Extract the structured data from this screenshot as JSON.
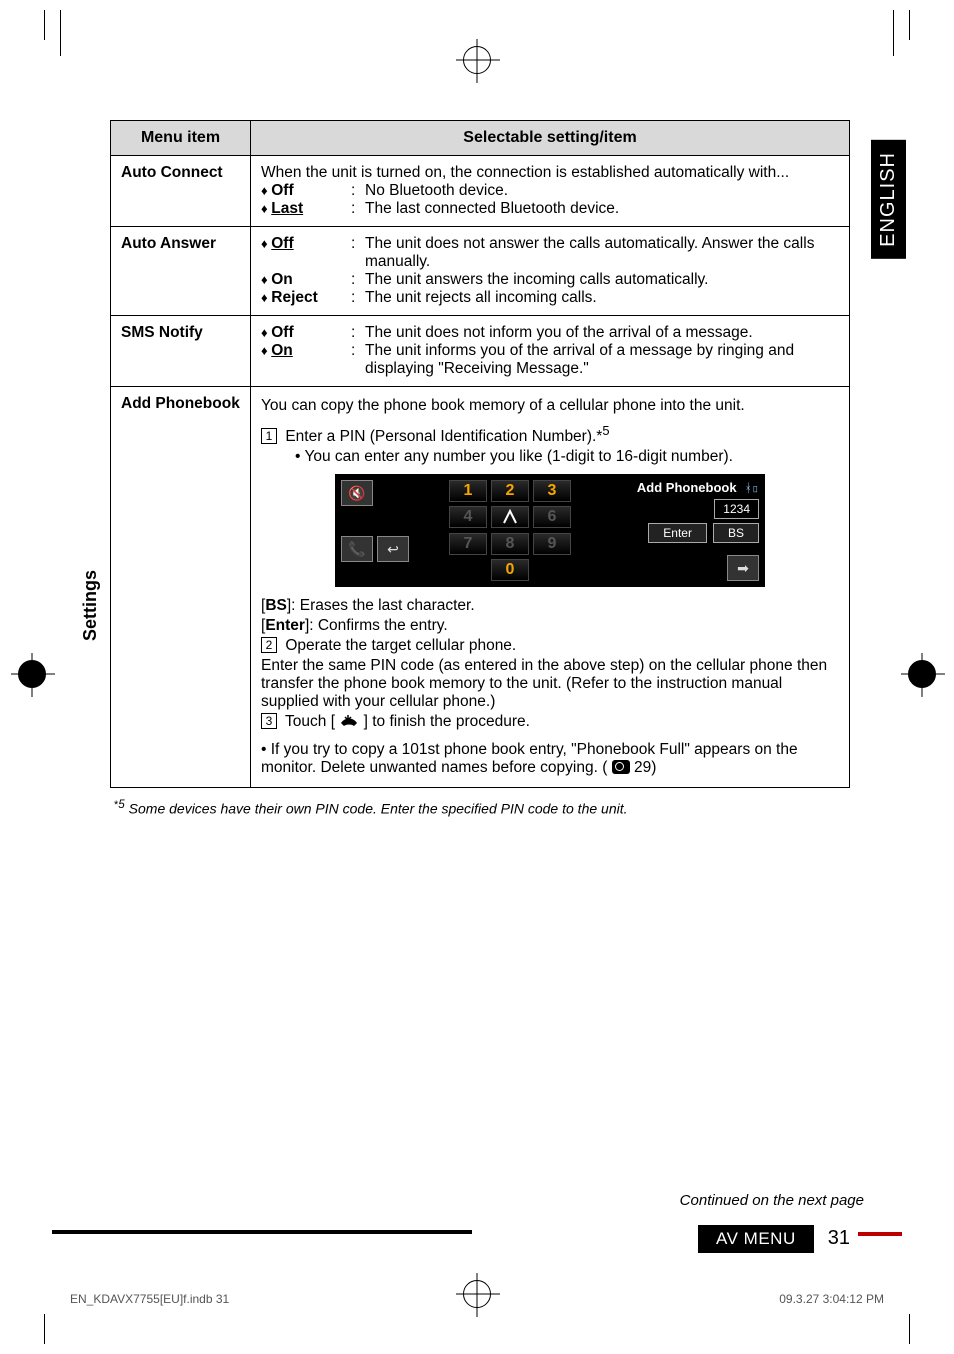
{
  "lang_tab": "ENGLISH",
  "vlabel": "Settings",
  "header": {
    "menu_item": "Menu item",
    "selectable": "Selectable setting/item"
  },
  "rows": {
    "auto_connect": {
      "title": "Auto Connect",
      "intro": "When the unit is turned on, the connection is established automatically with...",
      "off_key": "Off",
      "off_val": "No Bluetooth device.",
      "last_key": "Last",
      "last_val": "The last connected Bluetooth device."
    },
    "auto_answer": {
      "title": "Auto Answer",
      "off_key": "Off",
      "off_val": "The unit does not answer the calls automatically. Answer the calls manually.",
      "on_key": "On",
      "on_val": "The unit answers the incoming calls automatically.",
      "reject_key": "Reject",
      "reject_val": "The unit rejects all incoming calls."
    },
    "sms_notify": {
      "title": "SMS Notify",
      "off_key": "Off",
      "off_val": "The unit does not inform you of the arrival of a message.",
      "on_key": "On",
      "on_val": "The unit informs you of the arrival of a message by ringing and displaying \"Receiving Message.\""
    },
    "add_pb": {
      "title": "Add Phonebook",
      "intro": "You can copy the phone book memory of a cellular phone into the unit.",
      "step1a": "Enter a PIN (Personal Identification Number).*",
      "step1a_sup": "5",
      "step1b": "You can enter any number you like (1-digit to 16-digit number).",
      "bs_line_b": "BS",
      "bs_line_txt": "]: Erases the last character.",
      "enter_line_b": "Enter",
      "enter_line_txt": "]: Confirms the entry.",
      "step2": "Operate the target cellular phone.",
      "step2b": "Enter the same PIN code (as entered in the above step) on the cellular phone then transfer the phone book memory to the unit. (Refer to the instruction manual supplied with your cellular phone.)",
      "step3a": "Touch [",
      "step3b": "] to finish the procedure.",
      "note_a": "If you try to copy a 101st phone book entry, \"Phonebook Full\" appears on the monitor. Delete unwanted names before copying. (",
      "note_b": " 29)"
    }
  },
  "pb_screen": {
    "title": "Add Phonebook",
    "pin": "1234",
    "enter": "Enter",
    "bs": "BS",
    "keys": [
      "1",
      "2",
      "3",
      "4",
      "5",
      "6",
      "7",
      "8",
      "9",
      "",
      "0",
      ""
    ]
  },
  "footnote": {
    "star": "*",
    "sup": "5",
    "text": "Some devices have their own PIN code. Enter the specified PIN code to the unit."
  },
  "continued": "Continued on the next page",
  "footer": {
    "label": "AV MENU",
    "page": "31"
  },
  "printfooter": {
    "left": "EN_KDAVX7755[EU]f.indb   31",
    "right": "09.3.27   3:04:12 PM"
  },
  "colors": {
    "accent_red": "#b00000",
    "keypad_orange": "#f7a600",
    "header_gray": "#d9d9d9"
  }
}
